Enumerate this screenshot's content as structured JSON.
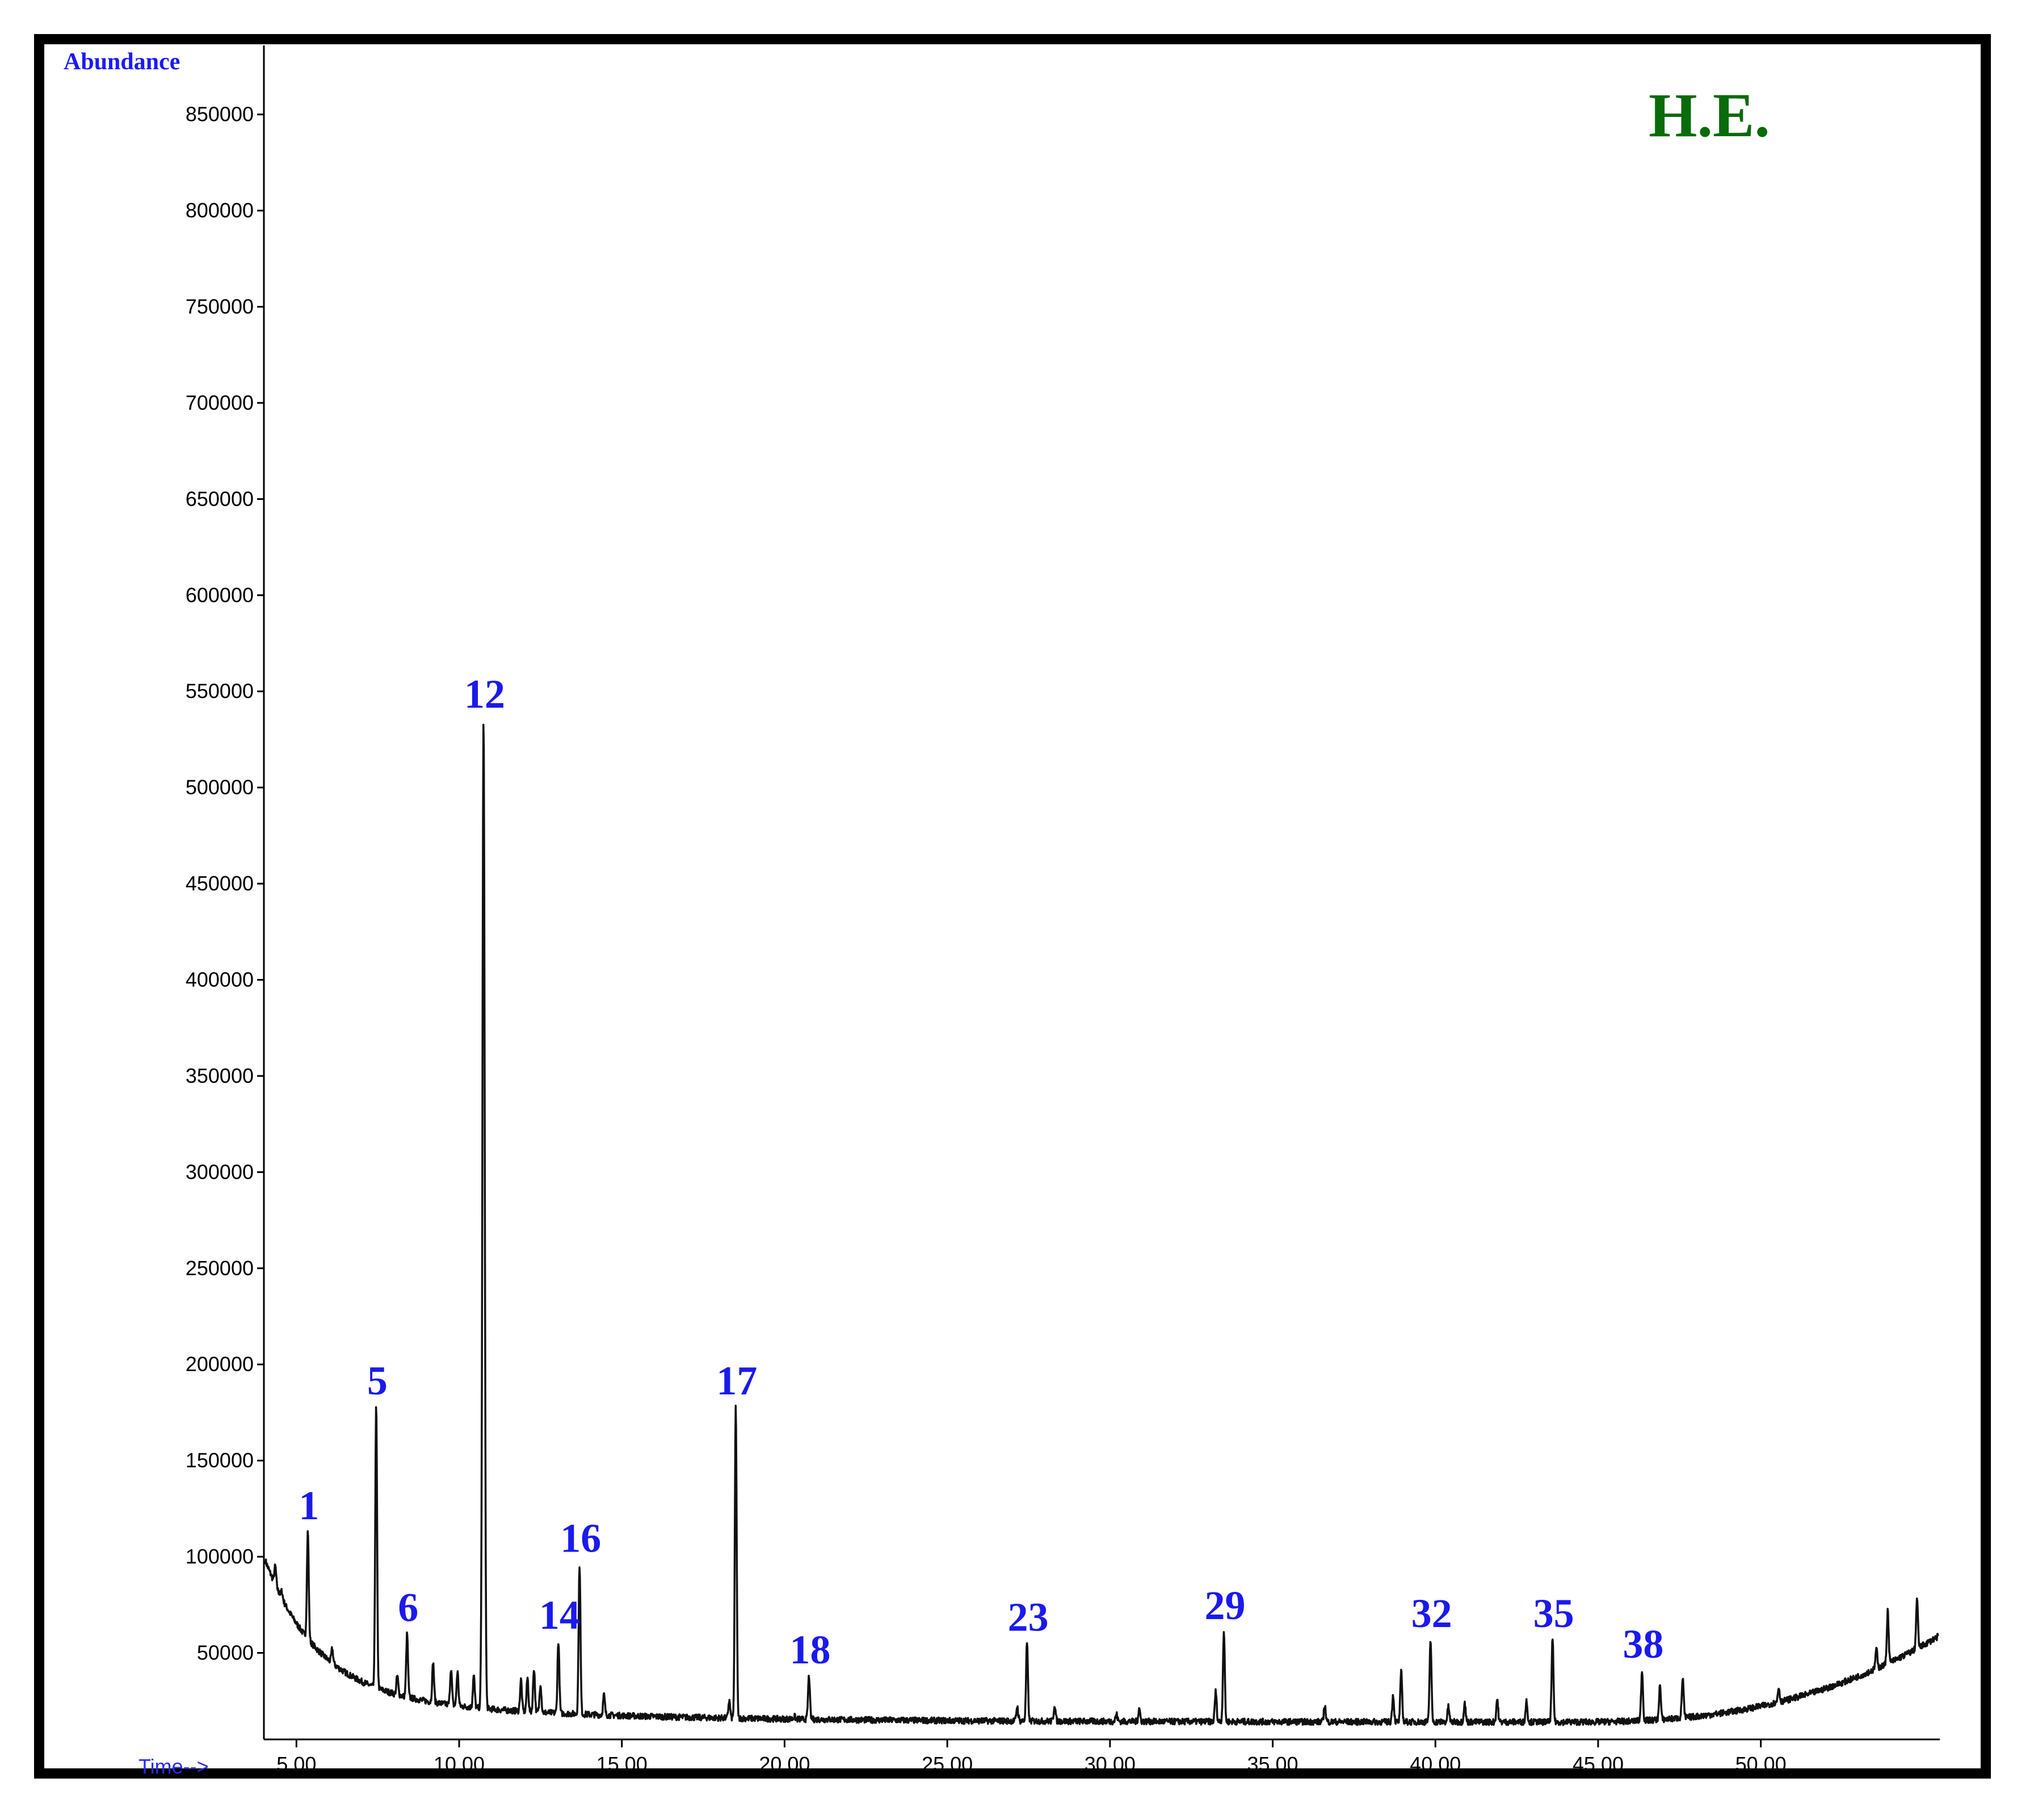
{
  "chart_data": {
    "type": "line",
    "tag": "H.E.",
    "ylabel": "Abundance",
    "xlabel": "Time-->",
    "xlim": [
      4.0,
      55.5
    ],
    "ylim": [
      5000,
      880000
    ],
    "yticks": [
      50000,
      100000,
      150000,
      200000,
      250000,
      300000,
      350000,
      400000,
      450000,
      500000,
      550000,
      600000,
      650000,
      700000,
      750000,
      800000,
      850000
    ],
    "ytick_labels": [
      "50000",
      "100000",
      "150000",
      "200000",
      "250000",
      "300000",
      "350000",
      "400000",
      "450000",
      "500000",
      "550000",
      "600000",
      "650000",
      "700000",
      "750000",
      "800000",
      "850000"
    ],
    "xticks": [
      5,
      10,
      15,
      20,
      25,
      30,
      35,
      40,
      45,
      50
    ],
    "xtick_labels": [
      "5.00",
      "10.00",
      "15.00",
      "20.00",
      "25.00",
      "30.00",
      "35.00",
      "40.00",
      "45.00",
      "50.00"
    ],
    "grid": false,
    "series": [
      {
        "peaks": [
          {
            "x": 5.35,
            "y": 113000,
            "label": "1"
          },
          {
            "x": 7.45,
            "y": 178000,
            "label": "5"
          },
          {
            "x": 8.4,
            "y": 60000,
            "label": "6"
          },
          {
            "x": 10.75,
            "y": 535000,
            "label": "12"
          },
          {
            "x": 13.05,
            "y": 56000,
            "label": "14"
          },
          {
            "x": 13.7,
            "y": 96000,
            "label": "16"
          },
          {
            "x": 18.5,
            "y": 178000,
            "label": "17"
          },
          {
            "x": 20.75,
            "y": 38000,
            "label": "18"
          },
          {
            "x": 27.45,
            "y": 55000,
            "label": "23"
          },
          {
            "x": 33.5,
            "y": 61000,
            "label": "29"
          },
          {
            "x": 39.85,
            "y": 57000,
            "label": "32"
          },
          {
            "x": 43.6,
            "y": 57000,
            "label": "35"
          },
          {
            "x": 46.35,
            "y": 41000,
            "label": "38"
          }
        ],
        "minor_peaks": [
          {
            "x": 4.35,
            "y": 95000
          },
          {
            "x": 4.55,
            "y": 82000
          },
          {
            "x": 5.0,
            "y": 60000
          },
          {
            "x": 6.1,
            "y": 52000
          },
          {
            "x": 8.1,
            "y": 38000
          },
          {
            "x": 9.2,
            "y": 45000
          },
          {
            "x": 9.75,
            "y": 42000
          },
          {
            "x": 9.95,
            "y": 40000
          },
          {
            "x": 10.45,
            "y": 38000
          },
          {
            "x": 11.9,
            "y": 36000
          },
          {
            "x": 12.1,
            "y": 37000
          },
          {
            "x": 12.3,
            "y": 42000
          },
          {
            "x": 12.5,
            "y": 34000
          },
          {
            "x": 14.45,
            "y": 28000
          },
          {
            "x": 18.3,
            "y": 25000
          },
          {
            "x": 20.3,
            "y": 17000
          },
          {
            "x": 27.15,
            "y": 22000
          },
          {
            "x": 28.3,
            "y": 23000
          },
          {
            "x": 30.2,
            "y": 18000
          },
          {
            "x": 30.9,
            "y": 21000
          },
          {
            "x": 33.25,
            "y": 30000
          },
          {
            "x": 36.6,
            "y": 23000
          },
          {
            "x": 38.7,
            "y": 28000
          },
          {
            "x": 38.95,
            "y": 40000
          },
          {
            "x": 40.4,
            "y": 22000
          },
          {
            "x": 40.9,
            "y": 24000
          },
          {
            "x": 41.9,
            "y": 26000
          },
          {
            "x": 42.8,
            "y": 25000
          },
          {
            "x": 46.9,
            "y": 33000
          },
          {
            "x": 47.6,
            "y": 37000
          },
          {
            "x": 50.55,
            "y": 32000
          },
          {
            "x": 53.55,
            "y": 52000
          },
          {
            "x": 53.9,
            "y": 72000
          },
          {
            "x": 54.8,
            "y": 78000
          }
        ]
      }
    ]
  }
}
